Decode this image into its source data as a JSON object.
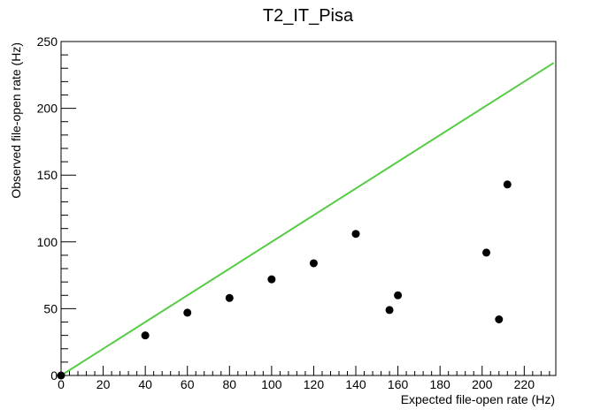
{
  "chart_data": {
    "type": "scatter",
    "title": "T2_IT_Pisa",
    "xlabel": "Expected file-open rate (Hz)",
    "ylabel": "Observed file-open rate (Hz)",
    "xlim": [
      0,
      235
    ],
    "ylim": [
      0,
      250
    ],
    "x_ticks": [
      0,
      20,
      40,
      60,
      80,
      100,
      120,
      140,
      160,
      180,
      200,
      220
    ],
    "y_ticks": [
      0,
      50,
      100,
      150,
      200,
      250
    ],
    "x_tick_labels": [
      "0",
      "20",
      "40",
      "60",
      "80",
      "100",
      "120",
      "140",
      "160",
      "180",
      "200",
      "220"
    ],
    "y_tick_labels": [
      "0",
      "50",
      "100",
      "150",
      "200",
      "250"
    ],
    "grid": false,
    "legend": "none",
    "series": [
      {
        "marker": "circle",
        "color": "#000000",
        "points": [
          {
            "x": 0,
            "y": 0
          },
          {
            "x": 40,
            "y": 30
          },
          {
            "x": 60,
            "y": 47
          },
          {
            "x": 80,
            "y": 58
          },
          {
            "x": 100,
            "y": 72
          },
          {
            "x": 120,
            "y": 84
          },
          {
            "x": 140,
            "y": 106
          },
          {
            "x": 156,
            "y": 49
          },
          {
            "x": 160,
            "y": 60
          },
          {
            "x": 202,
            "y": 92
          },
          {
            "x": 208,
            "y": 42
          },
          {
            "x": 212,
            "y": 143
          }
        ]
      }
    ],
    "reference_line": {
      "kind": "y = x",
      "color": "#55cc44",
      "x_range": [
        0,
        234
      ]
    }
  }
}
